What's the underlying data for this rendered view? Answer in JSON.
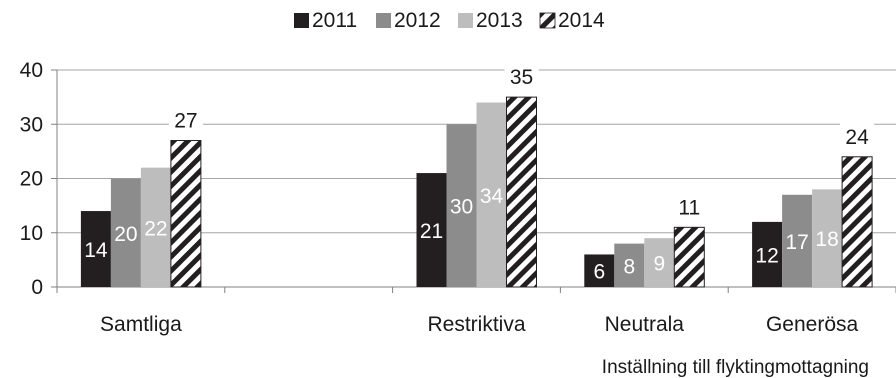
{
  "chart_data": {
    "type": "bar",
    "categories": [
      "Samtliga",
      "",
      "Restriktiva",
      "Neutrala",
      "Generösa"
    ],
    "series": [
      {
        "name": "2011",
        "values": [
          14,
          null,
          21,
          6,
          12
        ],
        "color": "#231f20",
        "pattern": "solid"
      },
      {
        "name": "2012",
        "values": [
          20,
          null,
          30,
          8,
          17
        ],
        "color": "#8c8c8c",
        "pattern": "solid"
      },
      {
        "name": "2013",
        "values": [
          22,
          null,
          34,
          9,
          18
        ],
        "color": "#bdbdbd",
        "pattern": "solid"
      },
      {
        "name": "2014",
        "values": [
          27,
          null,
          35,
          11,
          24
        ],
        "color": "#231f20",
        "pattern": "diagonal-hatch"
      }
    ],
    "title": "",
    "xlabel": "Inställning till flyktingmottagning",
    "ylabel": "",
    "ylim": [
      0,
      40
    ],
    "yticks": [
      0,
      10,
      20,
      30,
      40
    ],
    "grid": true,
    "legend_position": "top-center",
    "data_labels": true
  }
}
